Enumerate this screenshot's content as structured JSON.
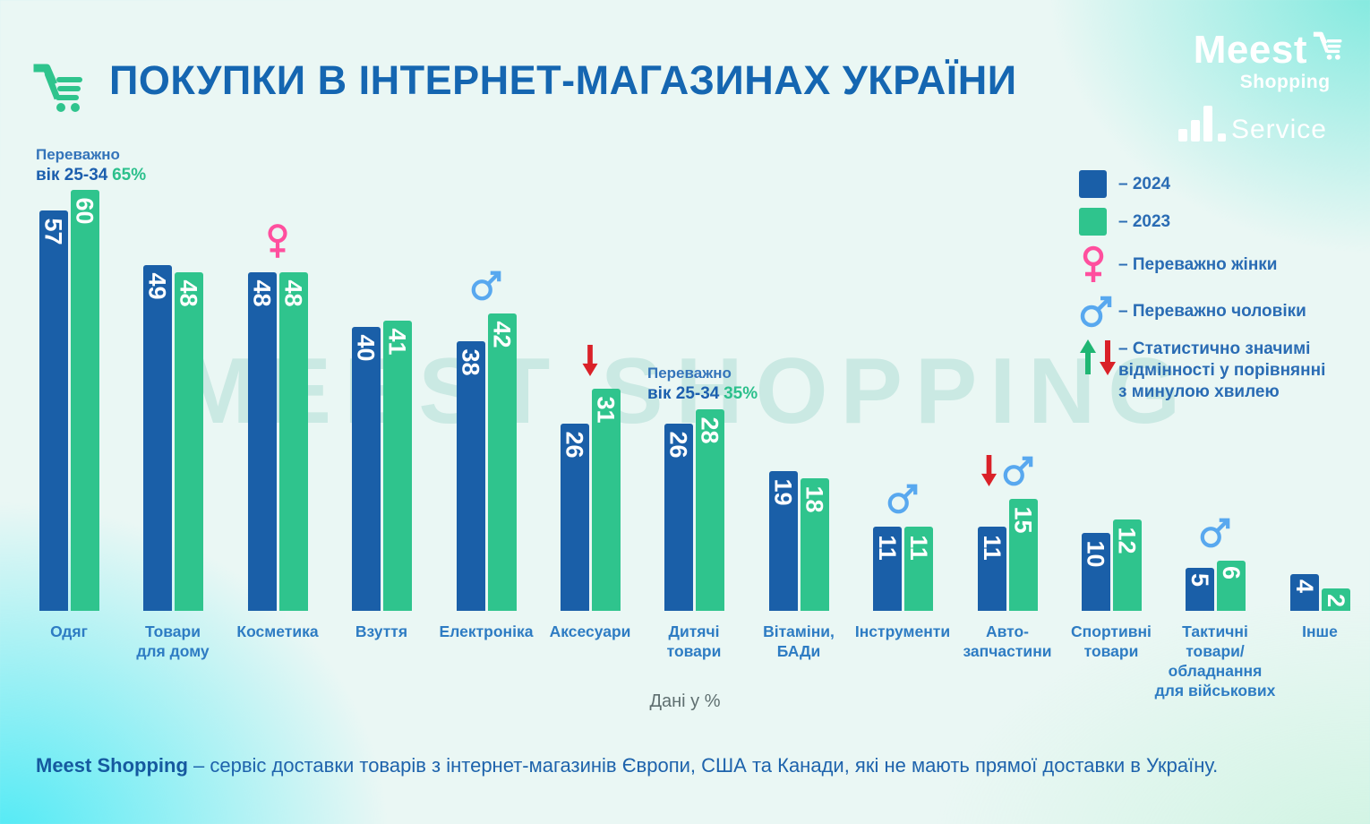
{
  "header": {
    "title": "ПОКУПКИ В ІНТЕРНЕТ-МАГАЗИНАХ УКРАЇНИ"
  },
  "logos": {
    "meest": {
      "name": "Meest",
      "sub": "Shopping"
    },
    "service": {
      "name": "Service"
    }
  },
  "watermark": {
    "text": "MEEST SHOPPING"
  },
  "legend": {
    "items": [
      {
        "icon": "swatch-2024",
        "label": "– 2024"
      },
      {
        "icon": "swatch-2023",
        "label": "– 2023"
      },
      {
        "icon": "female-icon",
        "label": "– Переважно жінки"
      },
      {
        "icon": "male-icon",
        "label": "– Переважно чоловіки"
      },
      {
        "icon": "arrow-up-down-icon",
        "label": "– Статистично значимі відмінності у порівнянні з минулою хвилею"
      }
    ]
  },
  "annotations": [
    {
      "line1": "Переважно",
      "bold": "вік 25-34",
      "value": "65%",
      "category": "Одяг"
    },
    {
      "line1": "Переважно",
      "bold": "вік 25-34",
      "value": "35%",
      "category": "Дитячі товари"
    }
  ],
  "axis_note": {
    "label": "Дані у %"
  },
  "footer": {
    "bold": "Meest Shopping",
    "text": " – сервіс доставки товарів з інтернет-магазинів Європи, США та Канади, які не мають прямої доставки в Україну."
  },
  "colors": {
    "bar_2024": "#1a5fa8",
    "bar_2023": "#2fc48d",
    "female_pink": "#ff4f9e",
    "male_blue": "#58a8ef",
    "arrow_red": "#da2128",
    "arrow_green": "#1fb673",
    "title_blue": "#1566b1"
  },
  "chart_data": {
    "type": "bar",
    "title": "ПОКУПКИ В ІНТЕРНЕТ-МАГАЗИНАХ УКРАЇНИ",
    "unit": "%",
    "xlabel": "Дані у %",
    "ylim": [
      0,
      65
    ],
    "legend_position": "right",
    "categories": [
      "Одяг",
      "Товари\nдля дому",
      "Косметика",
      "Взуття",
      "Електроніка",
      "Аксесуари",
      "Дитячі\nтовари",
      "Вітаміни,\nБАДи",
      "Інструменти",
      "Авто-\nзапчастини",
      "Спортивні\nтовари",
      "Тактичні\nтовари/\nобладнання\nдля військових",
      "Інше"
    ],
    "series": [
      {
        "name": "2024",
        "color": "#1a5fa8",
        "values": [
          57,
          49,
          48,
          40,
          38,
          26,
          26,
          19,
          11,
          11,
          10,
          5,
          4
        ]
      },
      {
        "name": "2023",
        "color": "#2fc48d",
        "values": [
          60,
          48,
          48,
          41,
          42,
          31,
          28,
          18,
          11,
          15,
          12,
          6,
          2
        ]
      }
    ],
    "icons": [
      [],
      [],
      [
        "female"
      ],
      [],
      [
        "male"
      ],
      [
        "arrow-down"
      ],
      [],
      [],
      [
        "male"
      ],
      [
        "arrow-down",
        "male"
      ],
      [],
      [
        "male"
      ],
      []
    ]
  }
}
